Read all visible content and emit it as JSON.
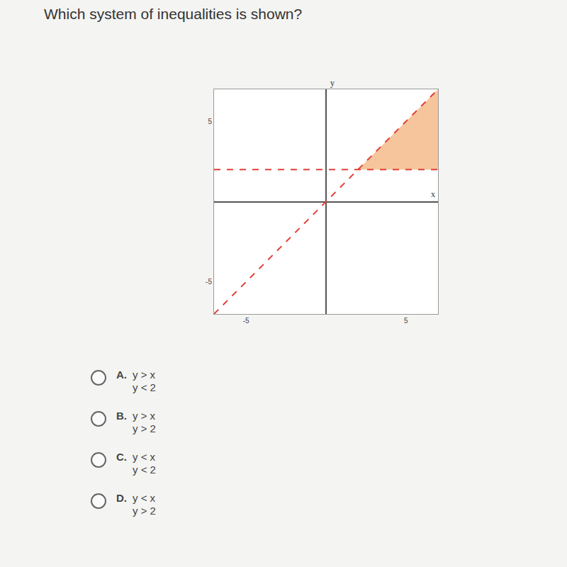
{
  "question": "Which system of inequalities is shown?",
  "chart_data": {
    "type": "line",
    "xlabel": "x",
    "ylabel": "y",
    "xlim": [
      -7,
      7
    ],
    "ylim": [
      -7,
      7
    ],
    "xticks": [
      -5,
      5
    ],
    "yticks": [
      -5,
      5
    ],
    "grid": false,
    "series": [
      {
        "type": "area",
        "color": "#f7c59b",
        "x": [
          2,
          7,
          7
        ],
        "values": [
          2,
          7,
          2
        ]
      },
      {
        "type": "line",
        "line_style": "dashed",
        "color": "#e0413a",
        "x": [
          -7,
          7
        ],
        "values": [
          -7,
          7
        ]
      },
      {
        "type": "line",
        "line_style": "dashed",
        "color": "#e0413a",
        "x": [
          -7,
          7
        ],
        "values": [
          2,
          2
        ]
      }
    ]
  },
  "options": [
    {
      "letter": "A.",
      "lines": [
        "y > x",
        "y < 2"
      ]
    },
    {
      "letter": "B.",
      "lines": [
        "y > x",
        "y > 2"
      ]
    },
    {
      "letter": "C.",
      "lines": [
        "y < x",
        "y < 2"
      ]
    },
    {
      "letter": "D.",
      "lines": [
        "y < x",
        "y > 2"
      ]
    }
  ]
}
